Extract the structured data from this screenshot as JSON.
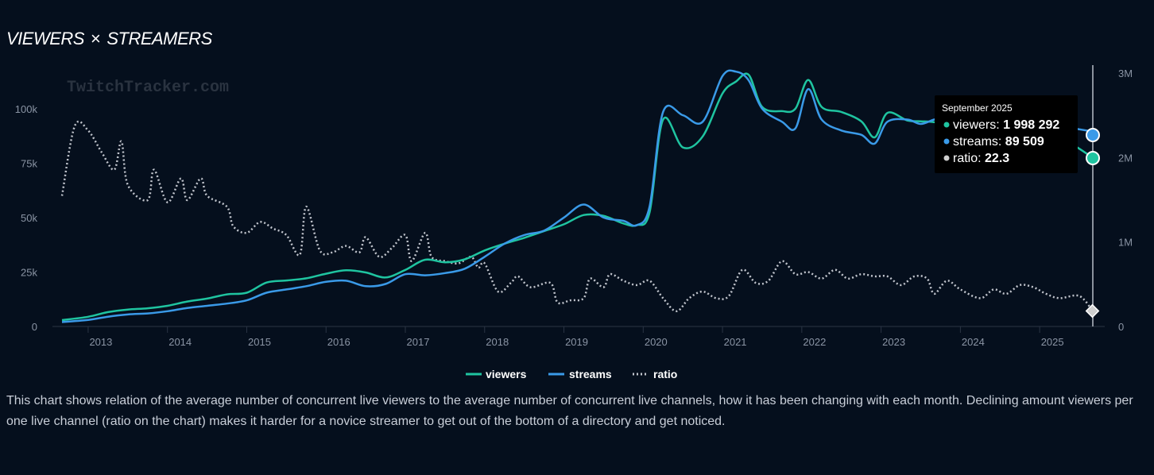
{
  "header": {
    "title_left": "VIEWERS",
    "title_sep": "×",
    "title_right": "STREAMERS"
  },
  "watermark": "TwitchTracker.com",
  "description": "This chart shows relation of the average number of concurrent live viewers to the average number of concurrent live channels, how it has been changing with each month. Declining amount viewers per one live channel (ratio on the chart) makes it harder for a novice streamer to get out of the bottom of a directory and get noticed.",
  "tooltip": {
    "date": "September 2025",
    "rows": [
      {
        "label": "viewers",
        "value": "1 998 292",
        "color": "#1fc4a0"
      },
      {
        "label": "streams",
        "value": "89 509",
        "color": "#3a9ae8"
      },
      {
        "label": "ratio",
        "value": "22.3",
        "color": "#cfcfcf"
      }
    ]
  },
  "chart_data": {
    "type": "line",
    "x_ticks": [
      "2013",
      "2014",
      "2015",
      "2016",
      "2017",
      "2018",
      "2019",
      "2020",
      "2021",
      "2022",
      "2023",
      "2024",
      "2025"
    ],
    "left_axis": {
      "ticks": [
        "0",
        "25k",
        "50k",
        "75k",
        "100k"
      ],
      "range": [
        0,
        120000
      ],
      "applies_to": [
        "streams",
        "ratio"
      ]
    },
    "right_axis": {
      "ticks": [
        "0",
        "1M",
        "2M",
        "3M"
      ],
      "range": [
        0,
        3000000
      ],
      "applies_to": [
        "viewers"
      ]
    },
    "x_range": [
      2012.67,
      2025.67
    ],
    "grid": "off",
    "legend": "bottom-center",
    "series": [
      {
        "name": "viewers",
        "color": "#1fc4a0",
        "style": "solid",
        "axis": "right",
        "points": [
          [
            2012.67,
            75000
          ],
          [
            2013.0,
            115000
          ],
          [
            2013.25,
            170000
          ],
          [
            2013.5,
            200000
          ],
          [
            2013.75,
            215000
          ],
          [
            2014.0,
            245000
          ],
          [
            2014.25,
            295000
          ],
          [
            2014.5,
            330000
          ],
          [
            2014.75,
            380000
          ],
          [
            2015.0,
            400000
          ],
          [
            2015.25,
            520000
          ],
          [
            2015.5,
            545000
          ],
          [
            2015.75,
            570000
          ],
          [
            2016.0,
            625000
          ],
          [
            2016.25,
            665000
          ],
          [
            2016.5,
            640000
          ],
          [
            2016.75,
            580000
          ],
          [
            2017.0,
            670000
          ],
          [
            2017.25,
            790000
          ],
          [
            2017.5,
            760000
          ],
          [
            2017.75,
            795000
          ],
          [
            2018.0,
            900000
          ],
          [
            2018.25,
            980000
          ],
          [
            2018.5,
            1050000
          ],
          [
            2018.75,
            1130000
          ],
          [
            2019.0,
            1210000
          ],
          [
            2019.25,
            1320000
          ],
          [
            2019.5,
            1310000
          ],
          [
            2019.75,
            1220000
          ],
          [
            2019.92,
            1200000
          ],
          [
            2020.08,
            1350000
          ],
          [
            2020.25,
            2450000
          ],
          [
            2020.5,
            2120000
          ],
          [
            2020.75,
            2250000
          ],
          [
            2021.0,
            2760000
          ],
          [
            2021.17,
            2900000
          ],
          [
            2021.33,
            2980000
          ],
          [
            2021.5,
            2600000
          ],
          [
            2021.75,
            2550000
          ],
          [
            2021.92,
            2580000
          ],
          [
            2022.08,
            2920000
          ],
          [
            2022.25,
            2600000
          ],
          [
            2022.5,
            2540000
          ],
          [
            2022.75,
            2430000
          ],
          [
            2022.92,
            2240000
          ],
          [
            2023.08,
            2530000
          ],
          [
            2023.33,
            2440000
          ],
          [
            2023.5,
            2430000
          ],
          [
            2023.67,
            2420000
          ],
          [
            2023.83,
            2380000
          ],
          [
            2024.0,
            2360000
          ],
          [
            2024.25,
            2320000
          ],
          [
            2024.5,
            2300000
          ],
          [
            2024.75,
            2260000
          ],
          [
            2025.0,
            2230000
          ],
          [
            2025.25,
            2200000
          ],
          [
            2025.42,
            2150000
          ],
          [
            2025.67,
            1998292
          ]
        ]
      },
      {
        "name": "streams",
        "color": "#3a9ae8",
        "style": "solid",
        "axis": "left",
        "points": [
          [
            2012.67,
            2000
          ],
          [
            2013.0,
            3000
          ],
          [
            2013.25,
            4500
          ],
          [
            2013.5,
            5500
          ],
          [
            2013.75,
            6000
          ],
          [
            2014.0,
            7000
          ],
          [
            2014.25,
            8500
          ],
          [
            2014.5,
            9500
          ],
          [
            2014.75,
            10500
          ],
          [
            2015.0,
            12000
          ],
          [
            2015.25,
            15500
          ],
          [
            2015.5,
            17000
          ],
          [
            2015.75,
            18500
          ],
          [
            2016.0,
            20500
          ],
          [
            2016.25,
            21000
          ],
          [
            2016.5,
            18500
          ],
          [
            2016.75,
            19500
          ],
          [
            2017.0,
            24000
          ],
          [
            2017.25,
            23500
          ],
          [
            2017.5,
            24500
          ],
          [
            2017.75,
            26500
          ],
          [
            2018.0,
            32000
          ],
          [
            2018.25,
            38000
          ],
          [
            2018.5,
            42000
          ],
          [
            2018.75,
            44000
          ],
          [
            2019.0,
            50000
          ],
          [
            2019.25,
            56000
          ],
          [
            2019.5,
            50000
          ],
          [
            2019.75,
            48500
          ],
          [
            2019.92,
            46500
          ],
          [
            2020.08,
            55000
          ],
          [
            2020.25,
            98500
          ],
          [
            2020.5,
            97000
          ],
          [
            2020.75,
            94000
          ],
          [
            2021.0,
            115000
          ],
          [
            2021.17,
            117000
          ],
          [
            2021.33,
            113000
          ],
          [
            2021.5,
            100000
          ],
          [
            2021.75,
            94000
          ],
          [
            2021.92,
            91000
          ],
          [
            2022.08,
            109000
          ],
          [
            2022.25,
            95000
          ],
          [
            2022.5,
            90000
          ],
          [
            2022.75,
            88000
          ],
          [
            2022.92,
            84000
          ],
          [
            2023.08,
            94000
          ],
          [
            2023.33,
            95000
          ],
          [
            2023.5,
            93000
          ],
          [
            2023.67,
            95000
          ],
          [
            2023.83,
            96000
          ],
          [
            2024.0,
            96000
          ],
          [
            2024.25,
            95500
          ],
          [
            2024.5,
            95000
          ],
          [
            2024.75,
            94000
          ],
          [
            2025.0,
            93000
          ],
          [
            2025.25,
            92000
          ],
          [
            2025.42,
            91000
          ],
          [
            2025.67,
            89509
          ]
        ]
      },
      {
        "name": "ratio",
        "color": "#c0c4cc",
        "style": "dotted",
        "axis": "left",
        "points": [
          [
            2012.67,
            60000
          ],
          [
            2012.83,
            92000
          ],
          [
            2013.0,
            90000
          ],
          [
            2013.17,
            80000
          ],
          [
            2013.33,
            72000
          ],
          [
            2013.42,
            85000
          ],
          [
            2013.5,
            65000
          ],
          [
            2013.75,
            58000
          ],
          [
            2013.83,
            72000
          ],
          [
            2014.0,
            57000
          ],
          [
            2014.17,
            68000
          ],
          [
            2014.25,
            58000
          ],
          [
            2014.42,
            68000
          ],
          [
            2014.5,
            60000
          ],
          [
            2014.75,
            55000
          ],
          [
            2014.83,
            46000
          ],
          [
            2015.0,
            43000
          ],
          [
            2015.17,
            48000
          ],
          [
            2015.33,
            45000
          ],
          [
            2015.5,
            42000
          ],
          [
            2015.67,
            33000
          ],
          [
            2015.75,
            55000
          ],
          [
            2015.92,
            35000
          ],
          [
            2016.08,
            34000
          ],
          [
            2016.25,
            37000
          ],
          [
            2016.42,
            34000
          ],
          [
            2016.5,
            41000
          ],
          [
            2016.67,
            32000
          ],
          [
            2016.83,
            36000
          ],
          [
            2017.0,
            42000
          ],
          [
            2017.08,
            30000
          ],
          [
            2017.25,
            43000
          ],
          [
            2017.33,
            32000
          ],
          [
            2017.5,
            30000
          ],
          [
            2017.67,
            29000
          ],
          [
            2017.83,
            32000
          ],
          [
            2017.92,
            27000
          ],
          [
            2018.0,
            29000
          ],
          [
            2018.17,
            16000
          ],
          [
            2018.33,
            20000
          ],
          [
            2018.42,
            23000
          ],
          [
            2018.58,
            18000
          ],
          [
            2018.83,
            20000
          ],
          [
            2018.92,
            11000
          ],
          [
            2019.08,
            12000
          ],
          [
            2019.25,
            13000
          ],
          [
            2019.33,
            22000
          ],
          [
            2019.5,
            18000
          ],
          [
            2019.58,
            24000
          ],
          [
            2019.75,
            21000
          ],
          [
            2019.92,
            19000
          ],
          [
            2020.08,
            21000
          ],
          [
            2020.25,
            13000
          ],
          [
            2020.42,
            7000
          ],
          [
            2020.58,
            13000
          ],
          [
            2020.75,
            16000
          ],
          [
            2020.92,
            13000
          ],
          [
            2021.08,
            14000
          ],
          [
            2021.25,
            26000
          ],
          [
            2021.42,
            20000
          ],
          [
            2021.58,
            21000
          ],
          [
            2021.75,
            30000
          ],
          [
            2021.92,
            24000
          ],
          [
            2022.08,
            25000
          ],
          [
            2022.25,
            22000
          ],
          [
            2022.42,
            26000
          ],
          [
            2022.58,
            22000
          ],
          [
            2022.75,
            24000
          ],
          [
            2022.92,
            23000
          ],
          [
            2023.08,
            23000
          ],
          [
            2023.25,
            19000
          ],
          [
            2023.42,
            23000
          ],
          [
            2023.58,
            22000
          ],
          [
            2023.67,
            15000
          ],
          [
            2023.83,
            21000
          ],
          [
            2024.0,
            17000
          ],
          [
            2024.25,
            13000
          ],
          [
            2024.42,
            17000
          ],
          [
            2024.58,
            15000
          ],
          [
            2024.75,
            19000
          ],
          [
            2024.92,
            18000
          ],
          [
            2025.08,
            15000
          ],
          [
            2025.25,
            13000
          ],
          [
            2025.5,
            14000
          ],
          [
            2025.67,
            7000
          ]
        ]
      }
    ]
  }
}
